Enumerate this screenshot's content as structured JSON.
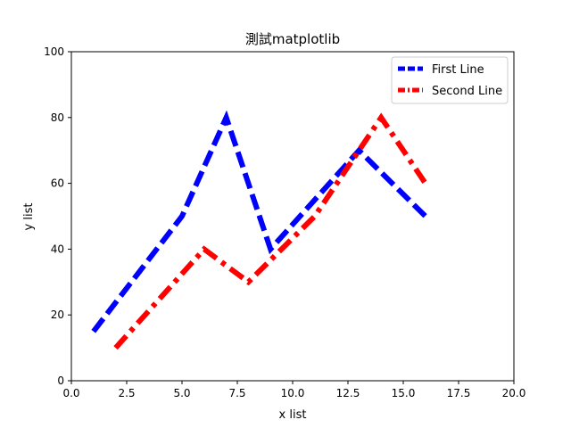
{
  "chart_data": {
    "type": "line",
    "title": "測試matplotlib",
    "xlabel": "x list",
    "ylabel": "y list",
    "xlim": [
      0,
      20
    ],
    "ylim": [
      0,
      100
    ],
    "xticks": [
      "0.0",
      "2.5",
      "5.0",
      "7.5",
      "10.0",
      "12.5",
      "15.0",
      "17.5",
      "20.0"
    ],
    "xtick_values": [
      0,
      2.5,
      5,
      7.5,
      10,
      12.5,
      15,
      17.5,
      20
    ],
    "yticks": [
      "0",
      "20",
      "40",
      "60",
      "80",
      "100"
    ],
    "ytick_values": [
      0,
      20,
      40,
      60,
      80,
      100
    ],
    "grid": false,
    "legend_position": "top-right",
    "series": [
      {
        "name": "First Line",
        "color": "#0000ff",
        "linestyle": "dashed",
        "x": [
          1,
          5,
          7,
          9,
          13,
          16
        ],
        "y": [
          15,
          50,
          80,
          40,
          70,
          50
        ]
      },
      {
        "name": "Second Line",
        "color": "#ff0000",
        "linestyle": "dashdot",
        "x": [
          2,
          6,
          8,
          11,
          14,
          16
        ],
        "y": [
          10,
          40,
          30,
          50,
          80,
          60
        ]
      }
    ]
  }
}
